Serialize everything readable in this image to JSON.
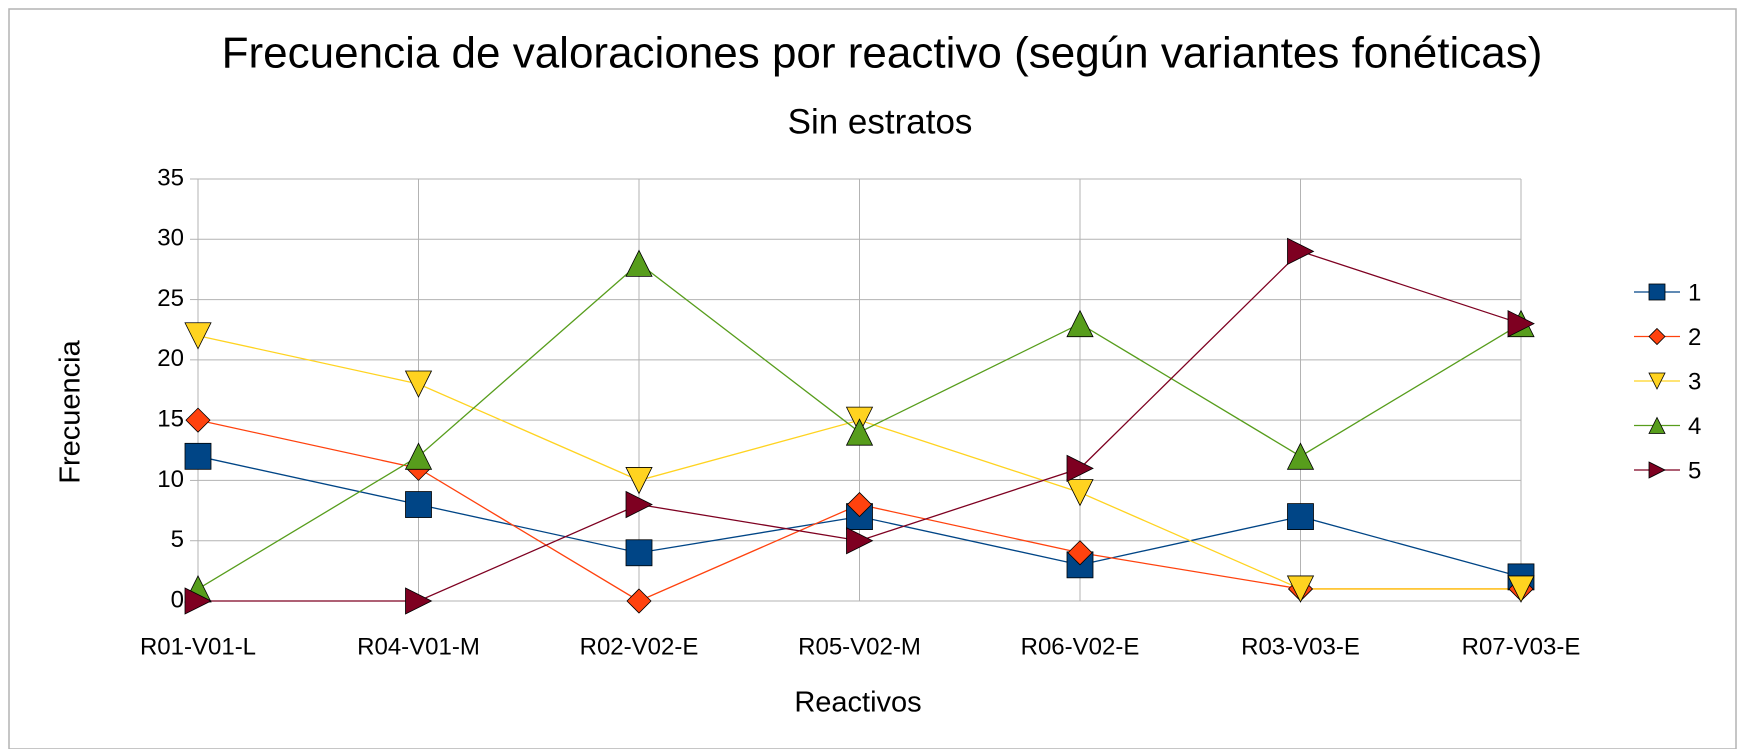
{
  "chart_data": {
    "type": "line",
    "title": "Frecuencia de valoraciones por reactivo (según variantes fonéticas)",
    "subtitle": "Sin estratos",
    "x_label": "Reactivos",
    "y_label": "Frecuencia",
    "categories": [
      "R01-V01-L",
      "R04-V01-M",
      "R02-V02-E",
      "R05-V02-M",
      "R06-V02-E",
      "R03-V03-E",
      "R07-V03-E"
    ],
    "series": [
      {
        "name": "1",
        "color": "#004586",
        "marker": "square",
        "values": [
          12,
          8,
          4,
          7,
          3,
          7,
          2
        ]
      },
      {
        "name": "2",
        "color": "#ff420e",
        "marker": "diamond",
        "values": [
          15,
          11,
          0,
          8,
          4,
          1,
          1
        ]
      },
      {
        "name": "3",
        "color": "#ffd320",
        "marker": "triangle-down",
        "values": [
          22,
          18,
          10,
          15,
          9,
          1,
          1
        ]
      },
      {
        "name": "4",
        "color": "#579d1c",
        "marker": "triangle-up",
        "values": [
          1,
          12,
          28,
          14,
          23,
          12,
          23
        ]
      },
      {
        "name": "5",
        "color": "#7e0021",
        "marker": "triangle-right",
        "values": [
          0,
          0,
          8,
          5,
          11,
          29,
          23
        ]
      }
    ],
    "ylim": [
      0,
      35
    ],
    "yticks": [
      0,
      5,
      10,
      15,
      20,
      25,
      30,
      35
    ],
    "grid": true,
    "legend": "right"
  }
}
